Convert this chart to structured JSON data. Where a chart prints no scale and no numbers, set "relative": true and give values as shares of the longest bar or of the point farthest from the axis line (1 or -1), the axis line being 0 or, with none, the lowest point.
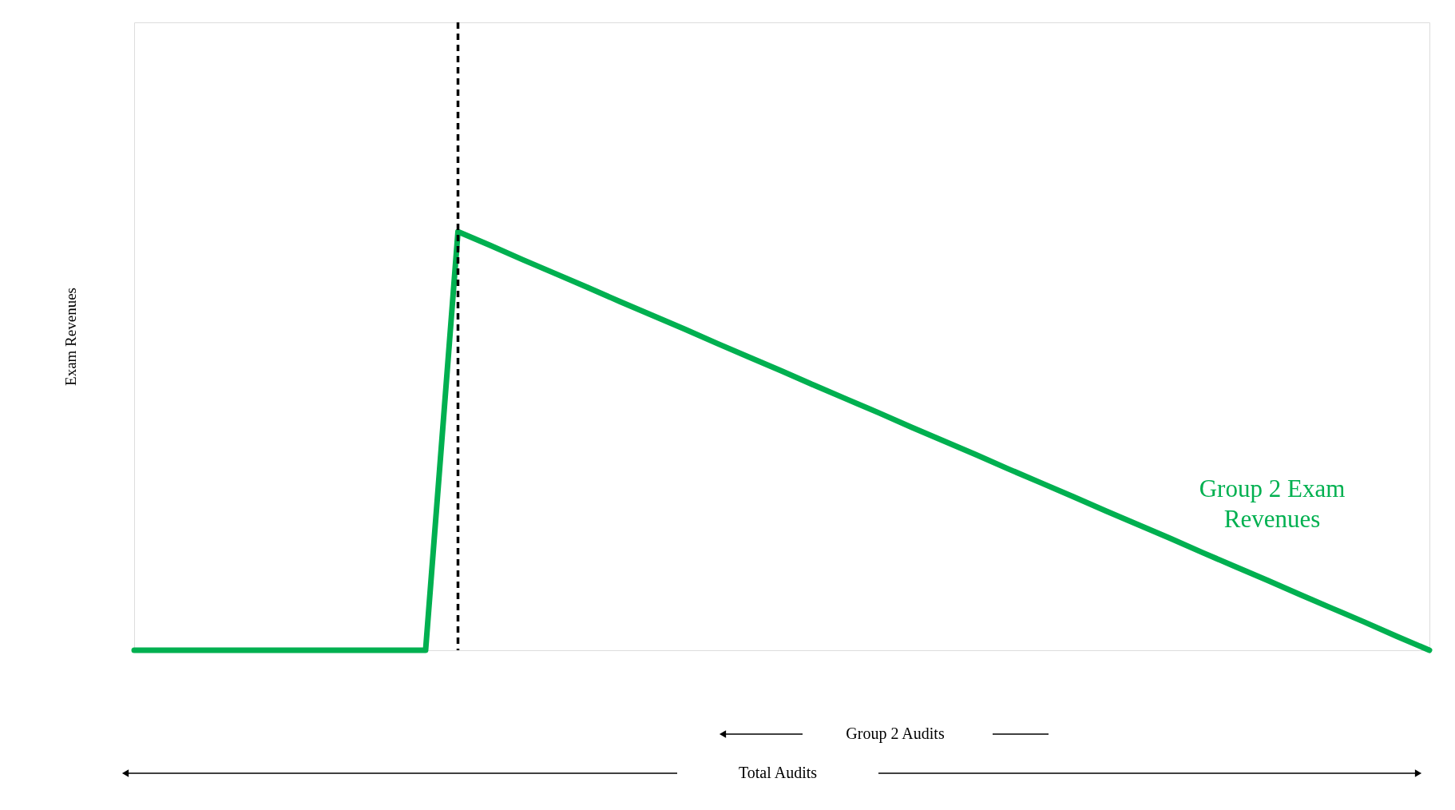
{
  "chart_data": {
    "type": "line",
    "relative": true,
    "ylabel": "Exam Revenues",
    "tick_labels": false,
    "grid": false,
    "line_style": "solid",
    "categories": [
      null,
      null,
      null,
      null,
      null,
      null,
      null,
      null,
      null,
      null,
      null,
      null,
      null,
      null,
      null,
      null,
      null,
      null,
      null,
      null,
      null,
      null,
      null,
      null,
      null,
      null,
      null,
      null,
      null,
      null,
      null,
      null,
      null,
      null,
      null,
      null,
      null,
      null,
      null,
      null,
      null
    ],
    "series": [
      {
        "name": "Group 2 Exam\nRevenues",
        "color": "#00b050",
        "values": [
          0,
          0,
          0,
          0,
          0,
          0,
          0,
          0,
          0,
          0,
          1,
          0.967,
          0.933,
          0.9,
          0.867,
          0.833,
          0.8,
          0.767,
          0.733,
          0.7,
          0.667,
          0.633,
          0.6,
          0.567,
          0.533,
          0.5,
          0.467,
          0.433,
          0.4,
          0.367,
          0.333,
          0.3,
          0.267,
          0.233,
          0.2,
          0.167,
          0.133,
          0.1,
          0.067,
          0.033,
          0
        ]
      }
    ],
    "ref_lines": [
      {
        "axis": "x",
        "color": "#000000",
        "line_style": "dashed"
      }
    ],
    "annotations": [
      "Group 2 Audits",
      "Total Audits"
    ]
  }
}
